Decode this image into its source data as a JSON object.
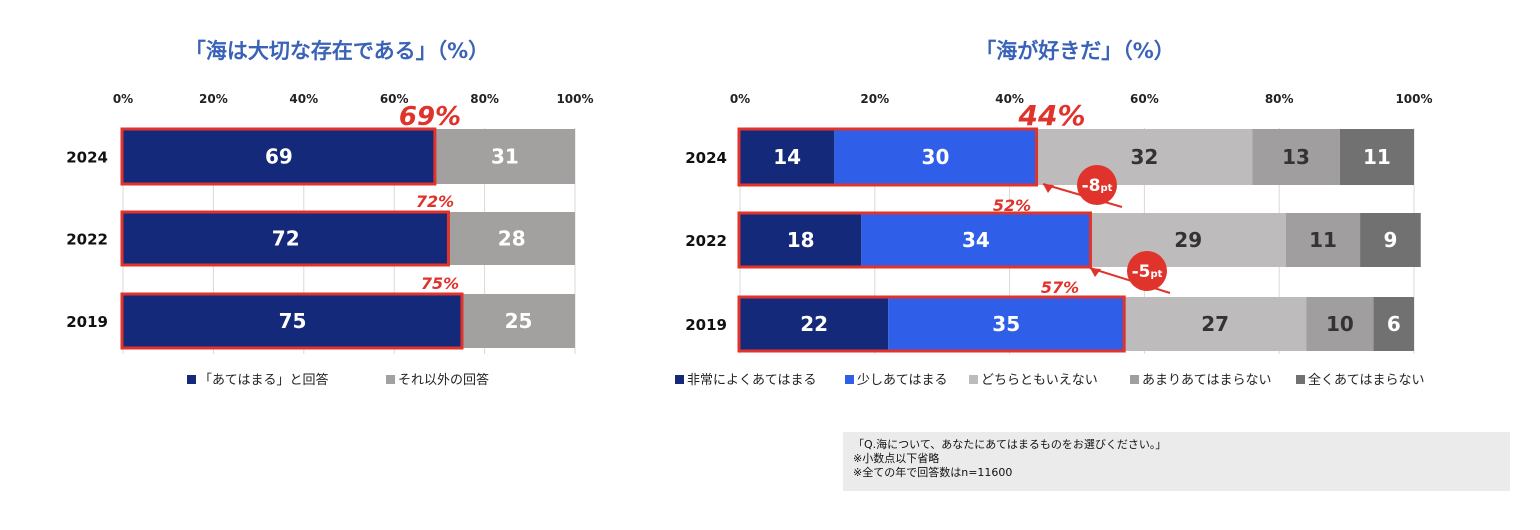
{
  "chart_data": [
    {
      "type": "bar",
      "orientation": "horizontal-stacked",
      "title": "「海は大切な存在である」（%）",
      "x_ticks": [
        "0%",
        "20%",
        "40%",
        "60%",
        "80%",
        "100%"
      ],
      "xlim": [
        0,
        100
      ],
      "categories": [
        "2024",
        "2022",
        "2019"
      ],
      "series": [
        {
          "name": "「あてはまる」と回答",
          "values": [
            69,
            72,
            75
          ],
          "color": "#14297a"
        },
        {
          "name": "それ以外の回答",
          "values": [
            31,
            28,
            25
          ],
          "color": "#a3a0a0"
        }
      ],
      "highlight_labels": [
        "69%",
        "72%",
        "75%"
      ],
      "legend_position": "bottom"
    },
    {
      "type": "bar",
      "orientation": "horizontal-stacked",
      "title": "「海が好きだ」（%）",
      "x_ticks": [
        "0%",
        "20%",
        "40%",
        "60%",
        "80%",
        "100%"
      ],
      "xlim": [
        0,
        100
      ],
      "categories": [
        "2024",
        "2022",
        "2019"
      ],
      "series": [
        {
          "name": "非常によくあてはまる",
          "values": [
            14,
            18,
            22
          ],
          "color": "#14297a"
        },
        {
          "name": "少しあてはまる",
          "values": [
            30,
            34,
            35
          ],
          "color": "#2f5fe8"
        },
        {
          "name": "どちらともいえない",
          "values": [
            32,
            29,
            27
          ],
          "color": "#bdbbbb"
        },
        {
          "name": "あまりあてはまらない",
          "values": [
            13,
            11,
            10
          ],
          "color": "#a09e9e"
        },
        {
          "name": "全くあてはまらない",
          "values": [
            11,
            9,
            6
          ],
          "color": "#727171"
        }
      ],
      "highlight_labels": [
        "44%",
        "52%",
        "57%"
      ],
      "annotations": [
        {
          "num": "-8",
          "unit": "pt"
        },
        {
          "num": "-5",
          "unit": "pt"
        }
      ],
      "legend_position": "bottom"
    }
  ],
  "note": {
    "lines": [
      "「Q.海について、あなたにあてはまるものをお選びください。」",
      "※小数点以下省略",
      "※全ての年で回答数はn=11600"
    ]
  },
  "colors": {
    "highlight": "#e0332b",
    "title": "#3a63b8",
    "note_bg": "#ebebeb"
  }
}
